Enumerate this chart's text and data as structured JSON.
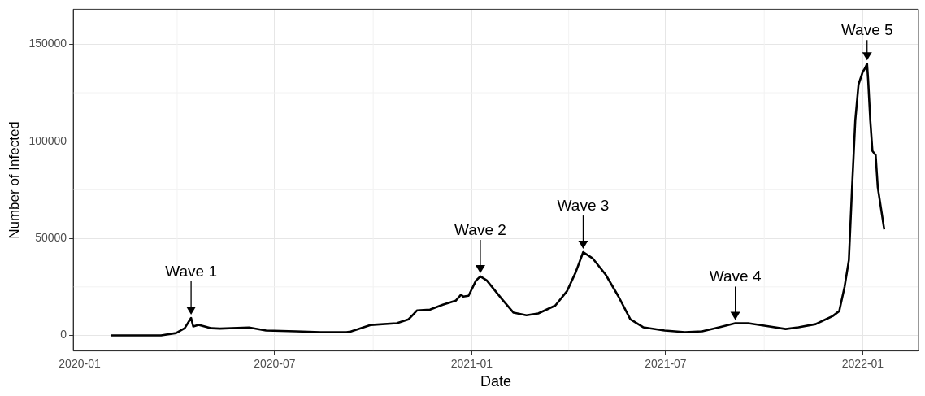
{
  "chart_data": {
    "type": "line",
    "xlabel": "Date",
    "ylabel": "Number of Infected",
    "x": [
      "2020-01-30",
      "2020-03-17",
      "2020-03-31",
      "2020-04-08",
      "2020-04-14",
      "2020-04-16",
      "2020-04-21",
      "2020-05-03",
      "2020-05-11",
      "2020-06-07",
      "2020-06-23",
      "2020-07-21",
      "2020-08-13",
      "2020-09-06",
      "2020-09-10",
      "2020-09-29",
      "2020-10-23",
      "2020-11-03",
      "2020-11-11",
      "2020-11-23",
      "2020-12-05",
      "2020-12-17",
      "2020-12-22",
      "2020-12-24",
      "2020-12-29",
      "2021-01-05",
      "2021-01-09",
      "2021-01-15",
      "2021-01-29",
      "2021-02-09",
      "2021-02-21",
      "2021-03-04",
      "2021-03-20",
      "2021-03-31",
      "2021-04-08",
      "2021-04-15",
      "2021-04-24",
      "2021-05-06",
      "2021-05-18",
      "2021-05-29",
      "2021-06-10",
      "2021-06-30",
      "2021-07-19",
      "2021-08-04",
      "2021-08-20",
      "2021-09-04",
      "2021-09-16",
      "2021-10-06",
      "2021-10-21",
      "2021-11-02",
      "2021-11-18",
      "2021-12-04",
      "2021-12-10",
      "2021-12-15",
      "2021-12-19",
      "2021-12-22",
      "2021-12-25",
      "2021-12-28",
      "2022-01-01",
      "2022-01-03",
      "2022-01-05",
      "2022-01-06",
      "2022-01-08",
      "2022-01-10",
      "2022-01-13",
      "2022-01-15",
      "2022-01-21"
    ],
    "series": [
      {
        "color": "#000000",
        "values": [
          0,
          0,
          1200,
          3700,
          9000,
          4600,
          5400,
          3700,
          3500,
          4100,
          2500,
          2100,
          1700,
          1700,
          2000,
          5400,
          6300,
          8300,
          12900,
          13300,
          15800,
          17900,
          21000,
          20000,
          20400,
          28300,
          30400,
          28300,
          18800,
          11700,
          10400,
          11300,
          15400,
          22900,
          32500,
          42900,
          39600,
          31300,
          20000,
          8300,
          4200,
          2500,
          1700,
          2100,
          4200,
          6300,
          6300,
          4600,
          3300,
          4200,
          5800,
          10000,
          12500,
          25000,
          38800,
          76300,
          110800,
          129200,
          135800,
          137500,
          140000,
          131700,
          110800,
          95000,
          92900,
          76300,
          54600
        ]
      }
    ],
    "xlim": [
      "2019-12-26",
      "2022-02-22"
    ],
    "xticks": [
      "2020-01",
      "2020-07",
      "2021-01",
      "2021-07",
      "2022-01"
    ],
    "ylim": [
      -8000,
      168000
    ],
    "yticks": [
      0,
      50000,
      100000,
      150000
    ],
    "grid": true,
    "legend": false,
    "marker": "none",
    "line_style": "solid",
    "annotations": [
      {
        "text": "Wave 1",
        "x": "2020-04-14",
        "y": 9000
      },
      {
        "text": "Wave 2",
        "x": "2021-01-09",
        "y": 30400
      },
      {
        "text": "Wave 3",
        "x": "2021-04-15",
        "y": 42900
      },
      {
        "text": "Wave 4",
        "x": "2021-09-04",
        "y": 6300
      },
      {
        "text": "Wave 5",
        "x": "2022-01-05",
        "y": 140000
      }
    ]
  }
}
